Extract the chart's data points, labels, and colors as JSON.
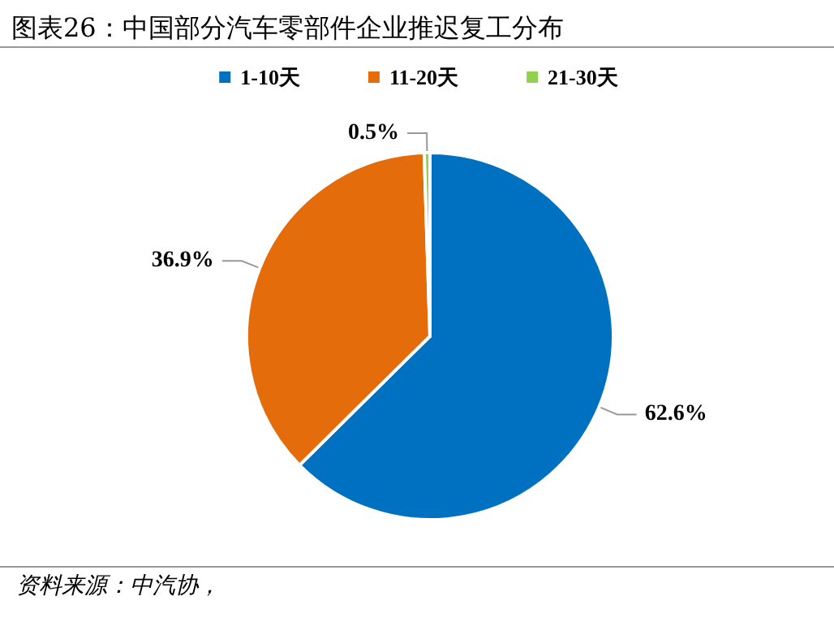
{
  "chart_data": {
    "type": "pie",
    "title": "图表26：中国部分汽车零部件企业推迟复工分布",
    "categories": [
      "1-10天",
      "11-20天",
      "21-30天"
    ],
    "values": [
      62.6,
      36.9,
      0.5
    ],
    "colors": [
      "#0070c0",
      "#e46c0a",
      "#92d050"
    ],
    "value_labels": [
      "62.6%",
      "36.9%",
      "0.5%"
    ],
    "legend": "top",
    "annotations": [
      "资料来源：中汽协，"
    ]
  }
}
